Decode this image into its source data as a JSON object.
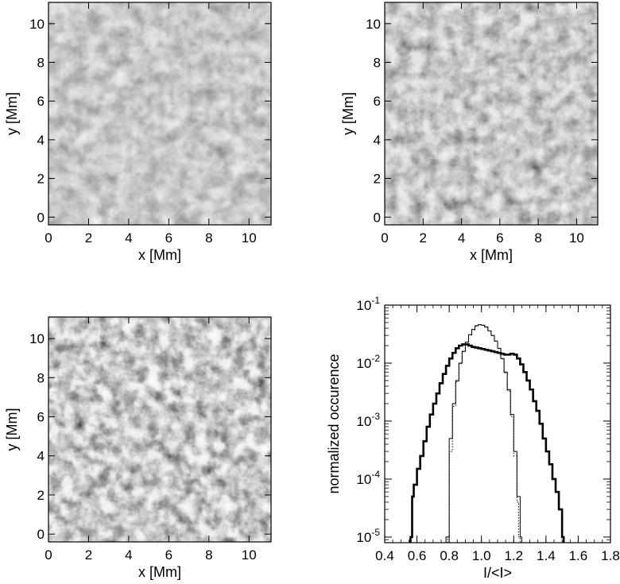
{
  "chart_data": [
    {
      "type": "heatmap",
      "panel": "top-left",
      "xlabel": "x  [Mm]",
      "ylabel": "y  [Mm]",
      "xlim": [
        0,
        11.1
      ],
      "ylim": [
        -0.4,
        11.1
      ],
      "xticks": [
        0,
        2,
        4,
        6,
        8,
        10
      ],
      "yticks": [
        0,
        2,
        4,
        6,
        8,
        10
      ],
      "contrast": 0.55,
      "seed": 11
    },
    {
      "type": "heatmap",
      "panel": "top-right",
      "xlabel": "x  [Mm]",
      "ylabel": "y  [Mm]",
      "xlim": [
        0,
        11.1
      ],
      "ylim": [
        -0.4,
        11.1
      ],
      "xticks": [
        0,
        2,
        4,
        6,
        8,
        10
      ],
      "yticks": [
        0,
        2,
        4,
        6,
        8,
        10
      ],
      "contrast": 0.75,
      "seed": 29
    },
    {
      "type": "heatmap",
      "panel": "bottom-left",
      "xlabel": "x  [Mm]",
      "ylabel": "y  [Mm]",
      "xlim": [
        0,
        11.1
      ],
      "ylim": [
        -0.4,
        11.1
      ],
      "xticks": [
        0,
        2,
        4,
        6,
        8,
        10
      ],
      "yticks": [
        0,
        2,
        4,
        6,
        8,
        10
      ],
      "contrast": 1.0,
      "seed": 47
    },
    {
      "type": "line",
      "panel": "bottom-right",
      "xlabel": "I/<I>",
      "ylabel": "normalized occurence",
      "xlim": [
        0.4,
        1.8
      ],
      "ylim": [
        8e-06,
        0.1
      ],
      "yscale": "log",
      "xticks": [
        "0.4",
        "0.6",
        "0.8",
        "1.0",
        "1.2",
        "1.4",
        "1.6",
        "1.8"
      ],
      "yticks": [
        {
          "base": "10",
          "exp": "-1",
          "value": 0.1
        },
        {
          "base": "10",
          "exp": "-2",
          "value": 0.01
        },
        {
          "base": "10",
          "exp": "-3",
          "value": 0.001
        },
        {
          "base": "10",
          "exp": "-4",
          "value": 0.0001
        },
        {
          "base": "10",
          "exp": "-5",
          "value": 1e-05
        }
      ],
      "series": [
        {
          "style": "thick",
          "x": [
            0.56,
            0.57,
            0.58,
            0.6,
            0.62,
            0.64,
            0.66,
            0.68,
            0.7,
            0.72,
            0.74,
            0.76,
            0.78,
            0.8,
            0.82,
            0.84,
            0.86,
            0.88,
            0.9,
            0.92,
            0.94,
            0.96,
            0.98,
            1.0,
            1.02,
            1.04,
            1.06,
            1.08,
            1.1,
            1.12,
            1.14,
            1.16,
            1.18,
            1.2,
            1.22,
            1.24,
            1.26,
            1.28,
            1.3,
            1.32,
            1.34,
            1.36,
            1.38,
            1.4,
            1.42,
            1.44,
            1.46,
            1.48,
            1.5
          ],
          "y": [
            1e-05,
            5e-05,
            8e-05,
            0.00015,
            0.00025,
            0.00045,
            0.0008,
            0.0013,
            0.002,
            0.003,
            0.0045,
            0.0065,
            0.009,
            0.012,
            0.015,
            0.018,
            0.02,
            0.021,
            0.021,
            0.02,
            0.019,
            0.0185,
            0.018,
            0.0175,
            0.017,
            0.0165,
            0.016,
            0.0155,
            0.015,
            0.0145,
            0.014,
            0.014,
            0.0145,
            0.014,
            0.012,
            0.0095,
            0.007,
            0.005,
            0.0035,
            0.0022,
            0.0015,
            0.0009,
            0.0005,
            0.0003,
            0.00018,
            0.0001,
            6e-05,
            3e-05,
            1e-05
          ]
        },
        {
          "style": "thin",
          "x": [
            0.78,
            0.8,
            0.82,
            0.84,
            0.86,
            0.88,
            0.9,
            0.92,
            0.94,
            0.96,
            0.98,
            1.0,
            1.02,
            1.04,
            1.06,
            1.08,
            1.1,
            1.12,
            1.14,
            1.16,
            1.18,
            1.2,
            1.22,
            1.24
          ],
          "y": [
            1e-05,
            0.0005,
            0.002,
            0.005,
            0.01,
            0.016,
            0.023,
            0.031,
            0.038,
            0.044,
            0.046,
            0.045,
            0.042,
            0.036,
            0.03,
            0.024,
            0.018,
            0.012,
            0.007,
            0.0035,
            0.0013,
            0.0003,
            5e-05,
            1e-05
          ]
        },
        {
          "style": "dotted",
          "x": [
            0.79,
            0.8,
            0.82,
            0.84,
            0.86,
            0.88,
            0.9,
            0.92,
            0.94,
            0.96,
            0.98,
            1.0,
            1.02,
            1.04,
            1.06,
            1.08,
            1.1,
            1.12,
            1.14,
            1.16,
            1.18,
            1.2,
            1.22,
            1.23
          ],
          "y": [
            1e-05,
            0.0003,
            0.0018,
            0.0048,
            0.0098,
            0.0158,
            0.0228,
            0.0305,
            0.0375,
            0.0435,
            0.0455,
            0.0448,
            0.0415,
            0.0358,
            0.0298,
            0.0238,
            0.0178,
            0.0118,
            0.0068,
            0.0033,
            0.0012,
            0.00025,
            4e-05,
            1e-05
          ]
        }
      ]
    }
  ]
}
